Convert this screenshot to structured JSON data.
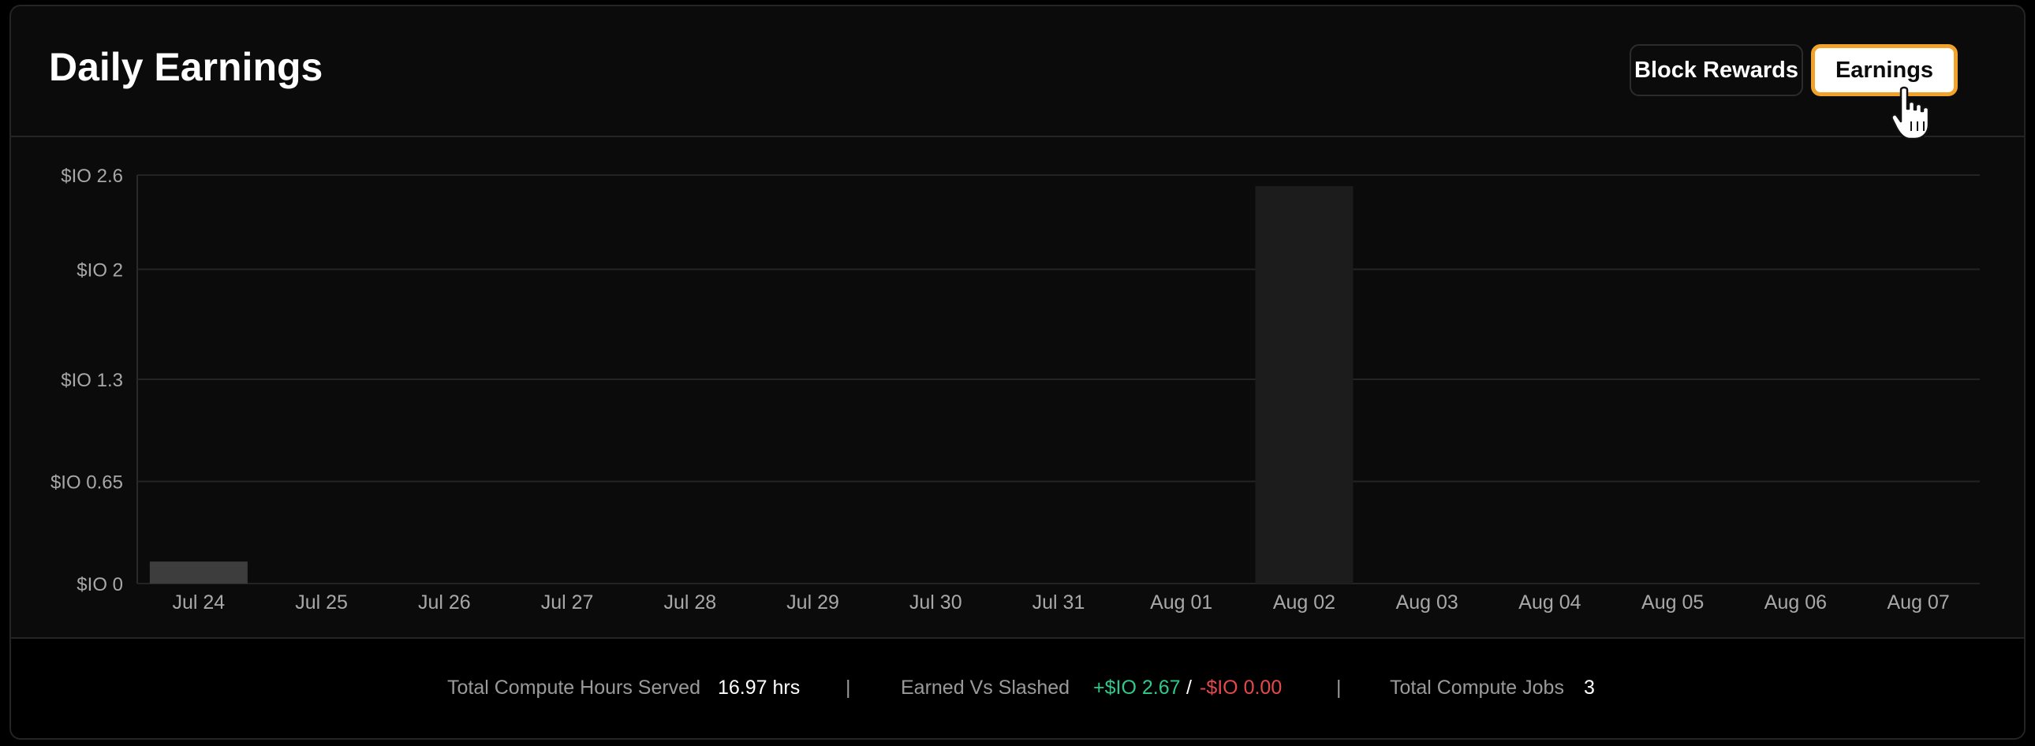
{
  "header": {
    "title": "Daily Earnings",
    "block_rewards_label": "Block Rewards",
    "earnings_label": "Earnings"
  },
  "colors": {
    "background": "#0b0b0b",
    "active_button_border": "#f0a22a",
    "bar": "#3d3d3d",
    "bar_peak": "#1c1c1c",
    "earned": "#2fc98a",
    "slashed": "#e5484d"
  },
  "chart_data": {
    "type": "bar",
    "title": "",
    "xlabel": "",
    "ylabel": "",
    "categories": [
      "Jul 24",
      "Jul 25",
      "Jul 26",
      "Jul 27",
      "Jul 28",
      "Jul 29",
      "Jul 30",
      "Jul 31",
      "Aug 01",
      "Aug 02",
      "Aug 03",
      "Aug 04",
      "Aug 05",
      "Aug 06",
      "Aug 07"
    ],
    "values": [
      0.14,
      0,
      0,
      0,
      0,
      0,
      0,
      0,
      0,
      2.53,
      0,
      0,
      0,
      0,
      0
    ],
    "yticks": [
      0,
      0.65,
      1.3,
      2,
      2.6
    ],
    "ytick_labels": [
      "$IO 0",
      "$IO 0.65",
      "$IO 1.3",
      "$IO 2",
      "$IO 2.6"
    ],
    "ylim": [
      0,
      2.6
    ],
    "grid": true,
    "legend": "none"
  },
  "footer": {
    "hours_label": "Total Compute Hours Served",
    "hours_value": "16.97 hrs",
    "separator": "|",
    "earned_label": "Earned Vs Slashed",
    "earned_value": "+$IO 2.67",
    "slash_sep": "/",
    "slashed_value": "-$IO 0.00",
    "jobs_label": "Total Compute Jobs",
    "jobs_value": "3"
  }
}
